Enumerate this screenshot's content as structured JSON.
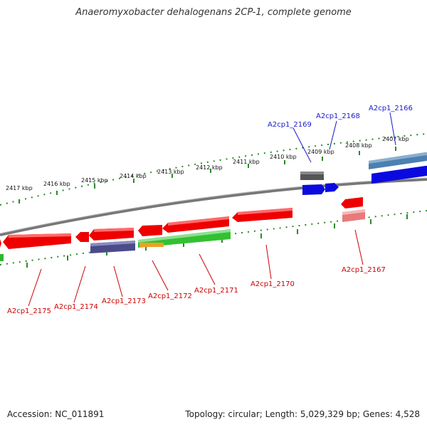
{
  "title": "Anaeromyxobacter dehalogenans 2CP-1, complete genome",
  "footer": {
    "accession": "Accession: NC_011891",
    "summary": "Topology: circular; Length: 5,029,329 bp; Genes: 4,528"
  },
  "colors": {
    "forward_label": "#1a1acc",
    "reverse_label": "#cc0000",
    "tick": "#2a8a2a",
    "backbone": "#777777"
  },
  "ticks": [
    "2417 kbp",
    "2416 kbp",
    "2415 kbp",
    "2414 kbp",
    "2413 kbp",
    "2412 kbp",
    "2411 kbp",
    "2410 kbp",
    "2409 kbp",
    "2408 kbp",
    "2407 kbp"
  ],
  "genes_top": [
    "A2cp1_2169",
    "A2cp1_2168",
    "A2cp1_2166"
  ],
  "genes_bottom": [
    "A2cp1_2175",
    "A2cp1_2174",
    "A2cp1_2173",
    "A2cp1_2172",
    "A2cp1_2171",
    "A2cp1_2170",
    "A2cp1_2167"
  ]
}
